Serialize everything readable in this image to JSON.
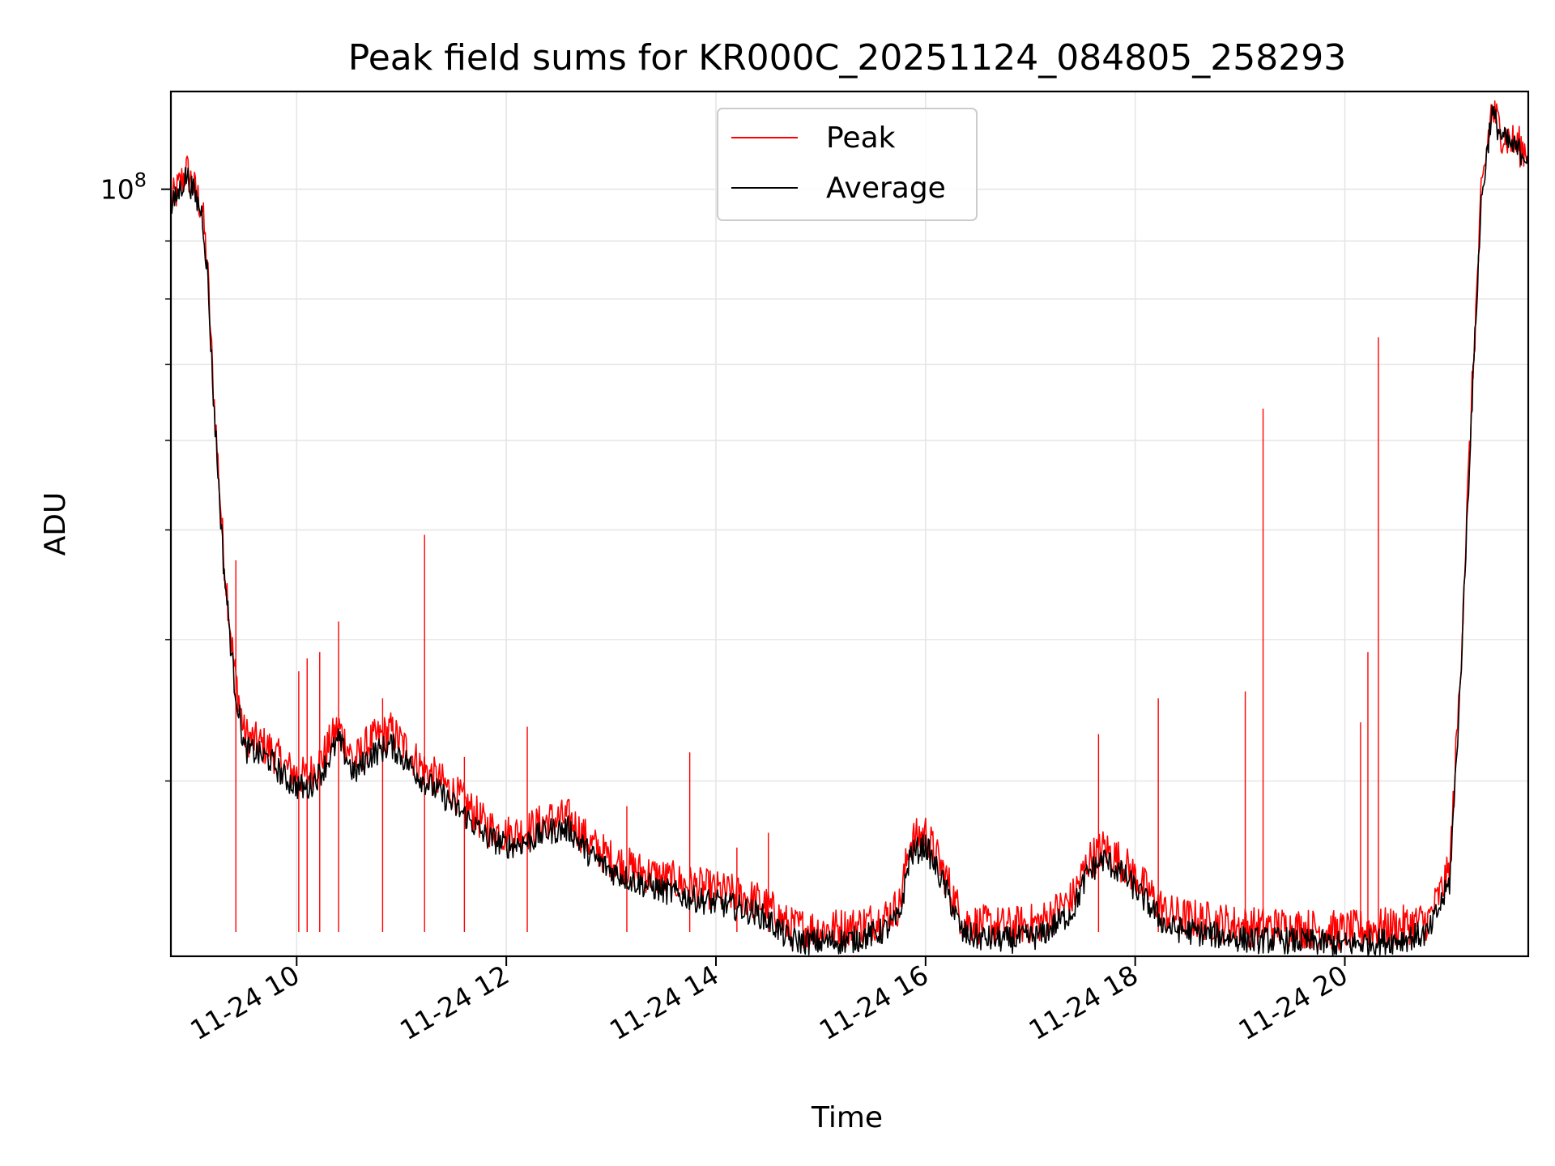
{
  "chart_data": {
    "type": "line",
    "title": "Peak field sums for KR000C_20251124_084805_258293",
    "xlabel": "Time",
    "ylabel": "ADU",
    "yscale": "log",
    "grid": true,
    "legend_position": "top-center",
    "xlim": [
      8.8,
      21.75
    ],
    "ylim": [
      21000000,
      122000000
    ],
    "x_ticks": [
      {
        "value": 10,
        "label": "11-24 10"
      },
      {
        "value": 12,
        "label": "11-24 12"
      },
      {
        "value": 14,
        "label": "11-24 14"
      },
      {
        "value": 16,
        "label": "11-24 16"
      },
      {
        "value": 18,
        "label": "11-24 18"
      },
      {
        "value": 20,
        "label": "11-24 20"
      }
    ],
    "y_ticks": [
      {
        "value": 100000000,
        "base": "10",
        "exponent": "8"
      }
    ],
    "y_minor_ticks": [
      30000000,
      40000000,
      50000000,
      60000000,
      70000000,
      80000000,
      90000000
    ],
    "series": [
      {
        "name": "Peak",
        "color": "#ff0000",
        "x": [
          8.8,
          8.95,
          9.1,
          9.15,
          9.2,
          9.3,
          9.4,
          9.5,
          9.6,
          9.75,
          9.9,
          10.0,
          10.1,
          10.25,
          10.4,
          10.55,
          10.7,
          10.9,
          11.05,
          11.2,
          11.4,
          11.6,
          11.8,
          12.0,
          12.2,
          12.4,
          12.6,
          12.8,
          13.0,
          13.2,
          13.5,
          13.8,
          14.0,
          14.2,
          14.4,
          14.55,
          14.7,
          15.0,
          15.3,
          15.6,
          15.75,
          15.85,
          16.0,
          16.2,
          16.35,
          16.5,
          16.8,
          17.1,
          17.4,
          17.55,
          17.7,
          17.9,
          18.1,
          18.3,
          18.5,
          18.8,
          19.1,
          19.4,
          19.7,
          20.0,
          20.2,
          20.5,
          20.8,
          21.0,
          21.1,
          21.2,
          21.3,
          21.4,
          21.5,
          21.6,
          21.75
        ],
        "y": [
          97000000,
          104000000,
          96000000,
          85000000,
          68000000,
          48000000,
          38000000,
          33000000,
          32500000,
          32000000,
          30800000,
          30400000,
          30200000,
          31500000,
          33500000,
          31200000,
          32500000,
          33200000,
          32000000,
          30800000,
          29800000,
          28700000,
          27400000,
          26900000,
          27100000,
          27700000,
          27800000,
          26400000,
          25600000,
          25100000,
          24600000,
          24200000,
          24000000,
          23800000,
          23500000,
          23000000,
          22300000,
          22200000,
          22300000,
          22700000,
          23300000,
          26500000,
          27000000,
          24600000,
          22600000,
          22400000,
          22300000,
          22500000,
          23600000,
          25500000,
          26200000,
          25300000,
          24100000,
          22900000,
          22700000,
          22500000,
          22300000,
          22300000,
          22200000,
          22100000,
          22200000,
          22300000,
          22600000,
          25000000,
          37000000,
          62000000,
          98000000,
          118000000,
          112000000,
          110000000,
          108000000
        ]
      },
      {
        "name": "Average",
        "color": "#000000",
        "x": [
          8.8,
          8.95,
          9.1,
          9.15,
          9.2,
          9.3,
          9.4,
          9.5,
          9.6,
          9.75,
          9.9,
          10.0,
          10.1,
          10.25,
          10.4,
          10.55,
          10.7,
          10.9,
          11.05,
          11.2,
          11.4,
          11.6,
          11.8,
          12.0,
          12.2,
          12.4,
          12.6,
          12.8,
          13.0,
          13.2,
          13.5,
          13.8,
          14.0,
          14.2,
          14.4,
          14.55,
          14.7,
          15.0,
          15.3,
          15.6,
          15.75,
          15.85,
          16.0,
          16.2,
          16.35,
          16.5,
          16.8,
          17.1,
          17.4,
          17.55,
          17.7,
          17.9,
          18.1,
          18.3,
          18.5,
          18.8,
          19.1,
          19.4,
          19.7,
          20.0,
          20.2,
          20.5,
          20.8,
          21.0,
          21.1,
          21.2,
          21.3,
          21.4,
          21.5,
          21.6,
          21.75
        ],
        "y": [
          96000000,
          103000000,
          95000000,
          84000000,
          67000000,
          47000000,
          37000000,
          32000000,
          31800000,
          31300000,
          30100000,
          29700000,
          29500000,
          30700000,
          32600000,
          30400000,
          31600000,
          32300000,
          31200000,
          30100000,
          29100000,
          28000000,
          26800000,
          26300000,
          26500000,
          27100000,
          27200000,
          25800000,
          25000000,
          24500000,
          24000000,
          23600000,
          23400000,
          23200000,
          22900000,
          22400000,
          21700000,
          21600000,
          21700000,
          22100000,
          22700000,
          25800000,
          26300000,
          24000000,
          22000000,
          21800000,
          21700000,
          21900000,
          23000000,
          24900000,
          25600000,
          24700000,
          23500000,
          22300000,
          22100000,
          21900000,
          21700000,
          21700000,
          21600000,
          21500000,
          21600000,
          21700000,
          22000000,
          24400000,
          36200000,
          61000000,
          97000000,
          117000000,
          111000000,
          109000000,
          107000000
        ]
      }
    ],
    "spikes": [
      {
        "x": 9.42,
        "y": 47000000
      },
      {
        "x": 10.02,
        "y": 37500000
      },
      {
        "x": 10.1,
        "y": 38500000
      },
      {
        "x": 10.22,
        "y": 39000000
      },
      {
        "x": 10.4,
        "y": 41500000
      },
      {
        "x": 10.82,
        "y": 35500000
      },
      {
        "x": 11.22,
        "y": 49500000
      },
      {
        "x": 11.6,
        "y": 31500000
      },
      {
        "x": 12.2,
        "y": 33500000
      },
      {
        "x": 13.15,
        "y": 28500000
      },
      {
        "x": 13.75,
        "y": 31800000
      },
      {
        "x": 14.2,
        "y": 26200000
      },
      {
        "x": 14.5,
        "y": 27000000
      },
      {
        "x": 17.65,
        "y": 33000000
      },
      {
        "x": 18.22,
        "y": 35500000
      },
      {
        "x": 19.05,
        "y": 36000000
      },
      {
        "x": 19.22,
        "y": 64000000
      },
      {
        "x": 20.15,
        "y": 33800000
      },
      {
        "x": 20.22,
        "y": 39000000
      },
      {
        "x": 20.32,
        "y": 74000000
      }
    ]
  }
}
